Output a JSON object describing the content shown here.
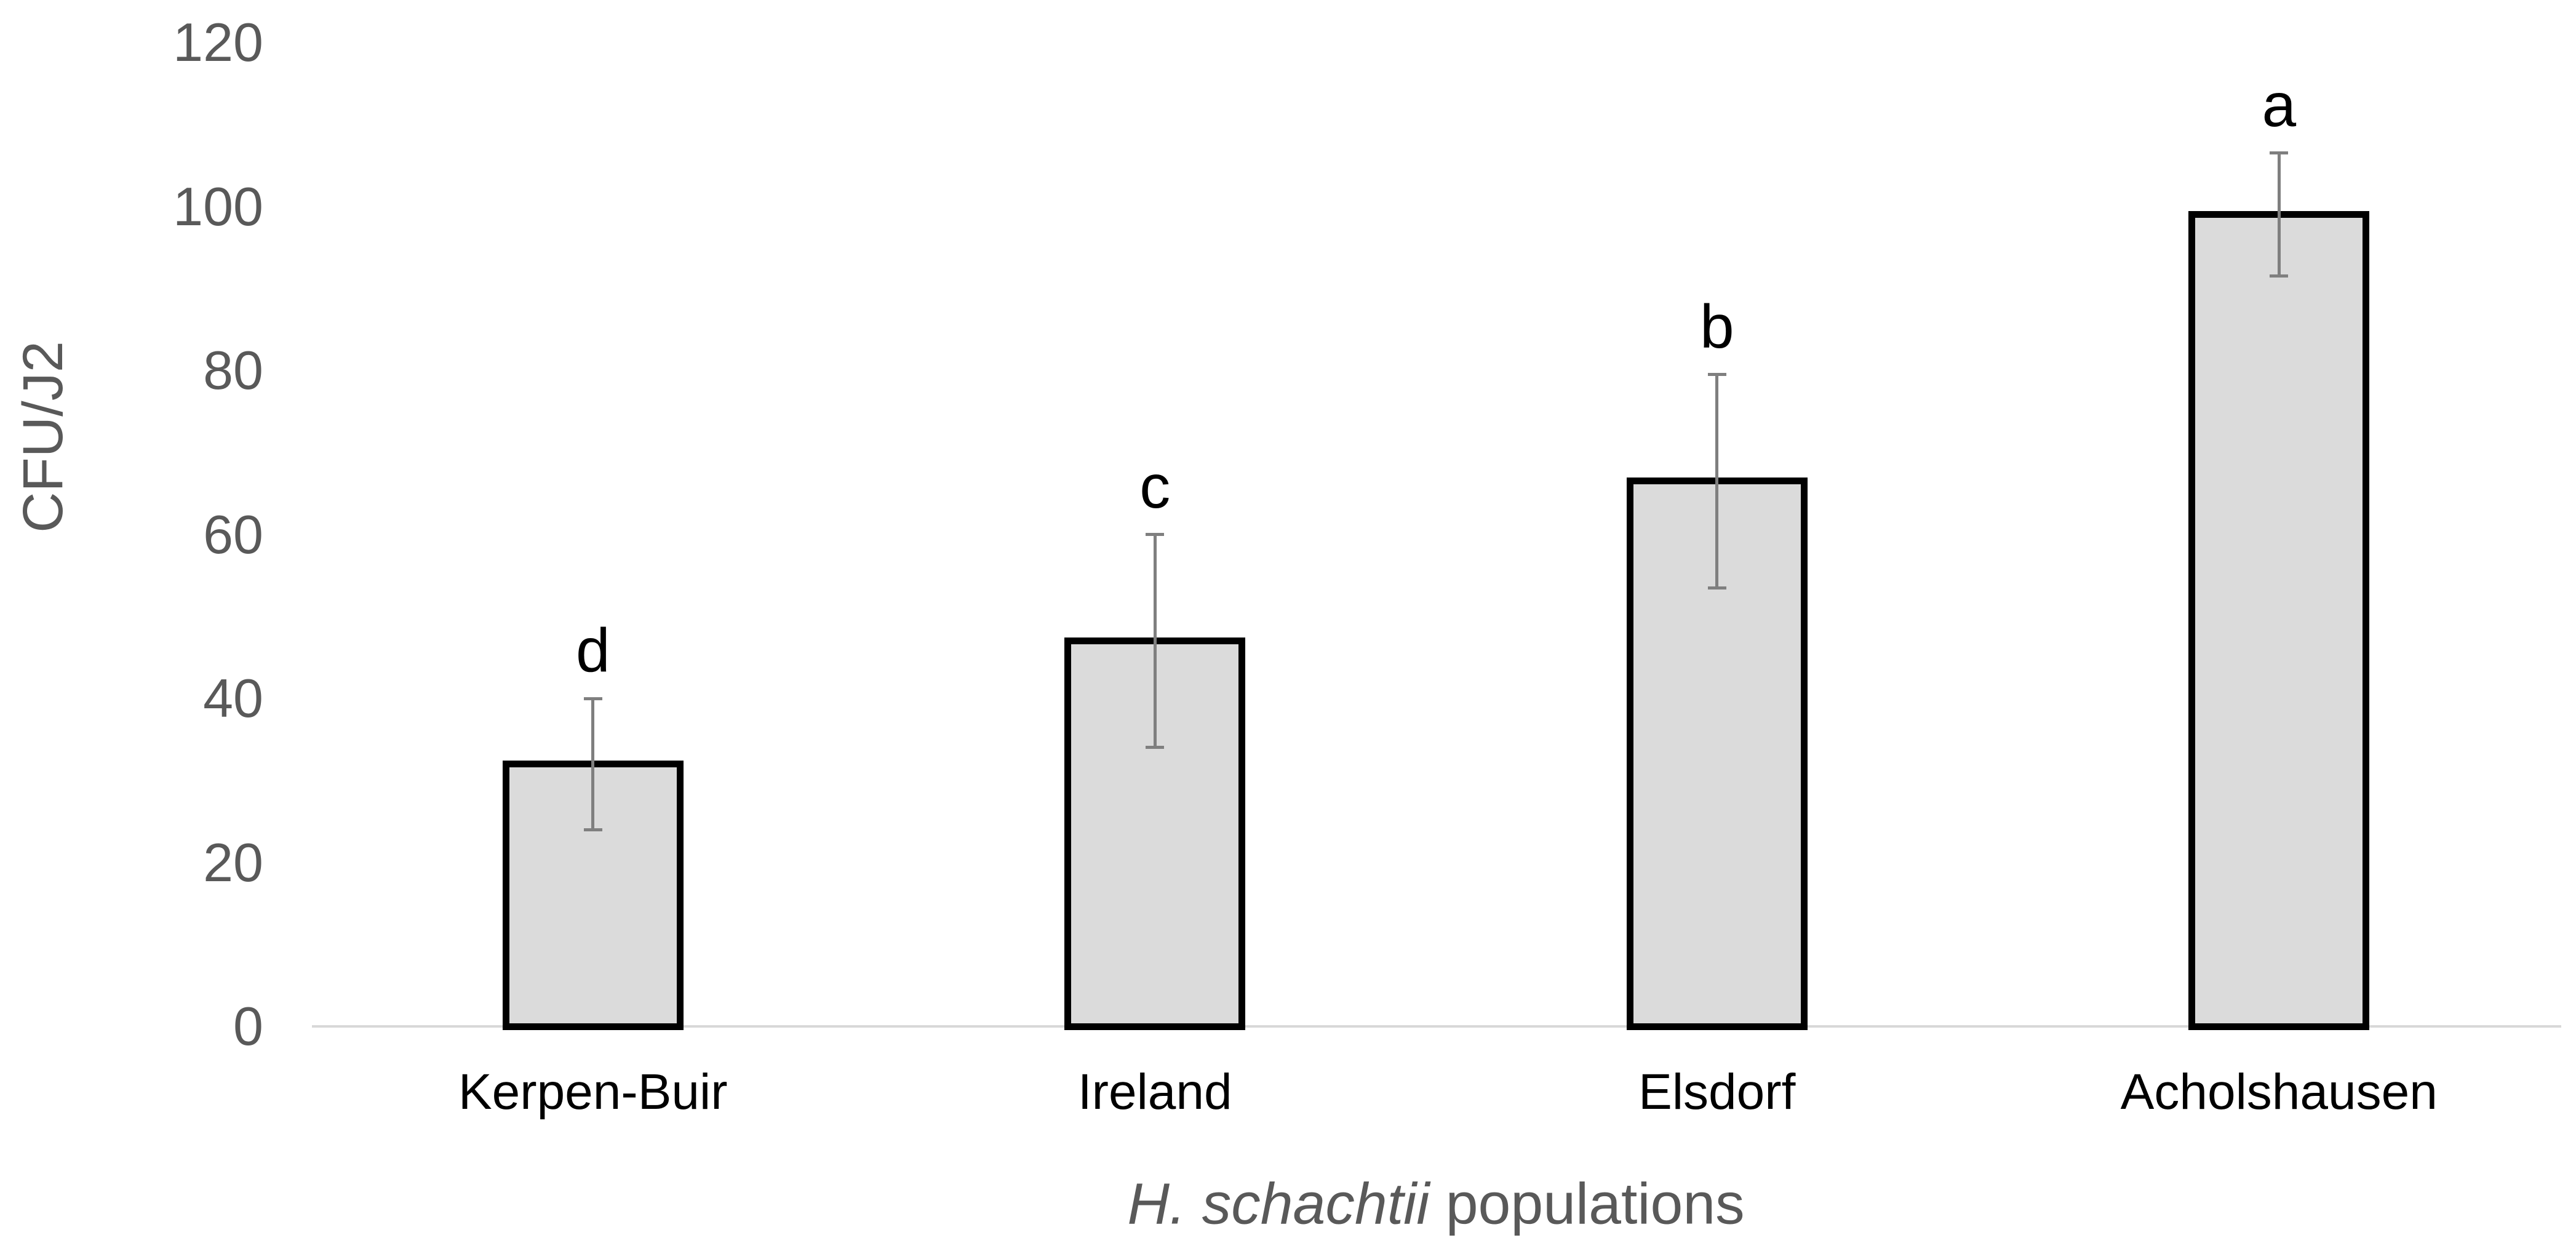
{
  "chart_data": {
    "type": "bar",
    "title": "",
    "categories": [
      "Kerpen-Buir",
      "Ireland",
      "Elsdorf",
      "Acholshausen"
    ],
    "values": [
      32,
      47,
      66.5,
      99
    ],
    "error_bars": [
      8,
      13,
      13,
      7.5
    ],
    "significance_letters": [
      "d",
      "c",
      "b",
      "a"
    ],
    "ylabel": "CFU/J2",
    "xlabel_italic": "H. schachtii",
    "xlabel_regular": " populations",
    "yticks": [
      0,
      20,
      40,
      60,
      80,
      100,
      120
    ],
    "ylim": [
      0,
      120
    ],
    "grid": false,
    "legend": false,
    "colors": {
      "bar_fill": "#dbdbdb",
      "bar_border": "#000000",
      "error_bar": "#7f7f7f",
      "axis_line": "#d8d8d8",
      "tick_labels": "#595959",
      "axis_titles": "#595959",
      "category_labels": "#000000",
      "letters": "#000000"
    }
  }
}
